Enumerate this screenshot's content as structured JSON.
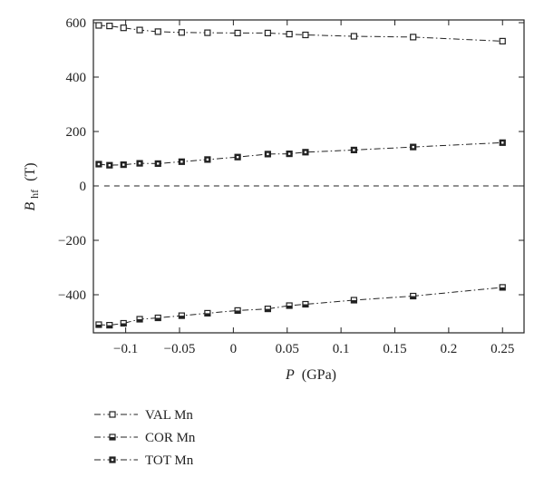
{
  "chart_data": {
    "type": "line",
    "title": "",
    "xlabel": {
      "symbol": "P",
      "unit": "(GPa)"
    },
    "ylabel": {
      "symbol": "B",
      "subscript": "hf",
      "unit": "(T)"
    },
    "xlim": [
      -0.13,
      0.27
    ],
    "ylim": [
      -540,
      610
    ],
    "xticks": [
      {
        "v": -0.1,
        "label": "−0.1"
      },
      {
        "v": -0.05,
        "label": "−0.05"
      },
      {
        "v": 0,
        "label": "0"
      },
      {
        "v": 0.05,
        "label": "0.05"
      },
      {
        "v": 0.1,
        "label": "0.1"
      },
      {
        "v": 0.15,
        "label": "0.15"
      },
      {
        "v": 0.2,
        "label": "0.2"
      },
      {
        "v": 0.25,
        "label": "0.25"
      }
    ],
    "yticks": [
      {
        "v": 600,
        "label": "600"
      },
      {
        "v": 400,
        "label": "400"
      },
      {
        "v": 200,
        "label": "200"
      },
      {
        "v": 0,
        "label": "0"
      },
      {
        "v": -200,
        "label": "−200"
      },
      {
        "v": -400,
        "label": "−400"
      }
    ],
    "x": [
      -0.125,
      -0.115,
      -0.102,
      -0.087,
      -0.07,
      -0.048,
      -0.024,
      0.004,
      0.032,
      0.052,
      0.067,
      0.112,
      0.167,
      0.25
    ],
    "series": [
      {
        "name": "VAL Mn",
        "marker": "open-square",
        "values": [
          590,
          588,
          581,
          573,
          567,
          564,
          563,
          562,
          562,
          558,
          555,
          550,
          547,
          532
        ]
      },
      {
        "name": "COR Mn",
        "marker": "half-square",
        "values": [
          -510,
          -512,
          -505,
          -490,
          -485,
          -477,
          -468,
          -458,
          -452,
          -440,
          -435,
          -420,
          -405,
          -373
        ]
      },
      {
        "name": "TOT Mn",
        "marker": "filled-square",
        "values": [
          80,
          76,
          78,
          83,
          82,
          89,
          97,
          106,
          117,
          118,
          124,
          132,
          143,
          159
        ]
      }
    ],
    "reference_line": {
      "y": 0,
      "style": "dashed"
    },
    "legend": {
      "position": "bottom-left"
    },
    "grid": false
  }
}
